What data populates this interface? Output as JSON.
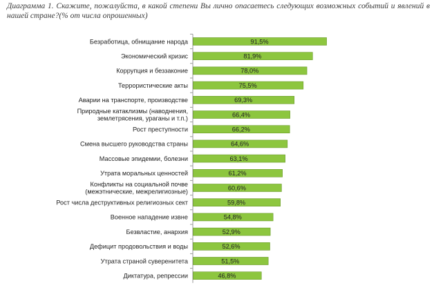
{
  "chart_data": {
    "type": "bar",
    "orientation": "horizontal",
    "title": "Диаграмма 1. Скажите, пожалуйста, в какой степени Вы лично опасаетесь следующих возможных событий и явлений в нашей стране?(% от числа опрошенных)",
    "xlabel": "",
    "ylabel": "",
    "xlim": [
      0,
      100
    ],
    "grid": false,
    "legend": "none",
    "bar_color": "#8dc63f",
    "bar_edge_color": "#6a9a2a",
    "categories": [
      [
        "Безработица, обнищание народа"
      ],
      [
        "Экономический кризис"
      ],
      [
        "Коррупция и беззаконие"
      ],
      [
        "Террористические акты"
      ],
      [
        "Аварии на транспорте, производстве"
      ],
      [
        "Природные катаклизмы (наводнения,",
        "землетрясения, ураганы и т.п.)"
      ],
      [
        "Рост преступности"
      ],
      [
        "Смена высшего руководства страны"
      ],
      [
        "Массовые эпидемии, болезни"
      ],
      [
        "Утрата моральных ценностей"
      ],
      [
        "Конфликты на социальной почве",
        "(межэтнические, межрелигиозные)"
      ],
      [
        "Рост числа деструктивных религиозных сект"
      ],
      [
        "Военное нападение извне"
      ],
      [
        "Безвластие, анархия"
      ],
      [
        "Дефицит продовольствия и воды"
      ],
      [
        "Утрата страной суверенитета"
      ],
      [
        "Диктатура, репрессии"
      ]
    ],
    "values": [
      91.5,
      81.9,
      78.0,
      75.5,
      69.3,
      66.4,
      66.2,
      64.6,
      63.1,
      61.2,
      60.6,
      59.8,
      54.8,
      52.9,
      52.6,
      51.5,
      46.8
    ],
    "value_labels": [
      "91,5%",
      "81,9%",
      "78,0%",
      "75,5%",
      "69,3%",
      "66,4%",
      "66,2%",
      "64,6%",
      "63,1%",
      "61,2%",
      "60,6%",
      "59,8%",
      "54,8%",
      "52,9%",
      "52,6%",
      "51,5%",
      "46,8%"
    ]
  }
}
